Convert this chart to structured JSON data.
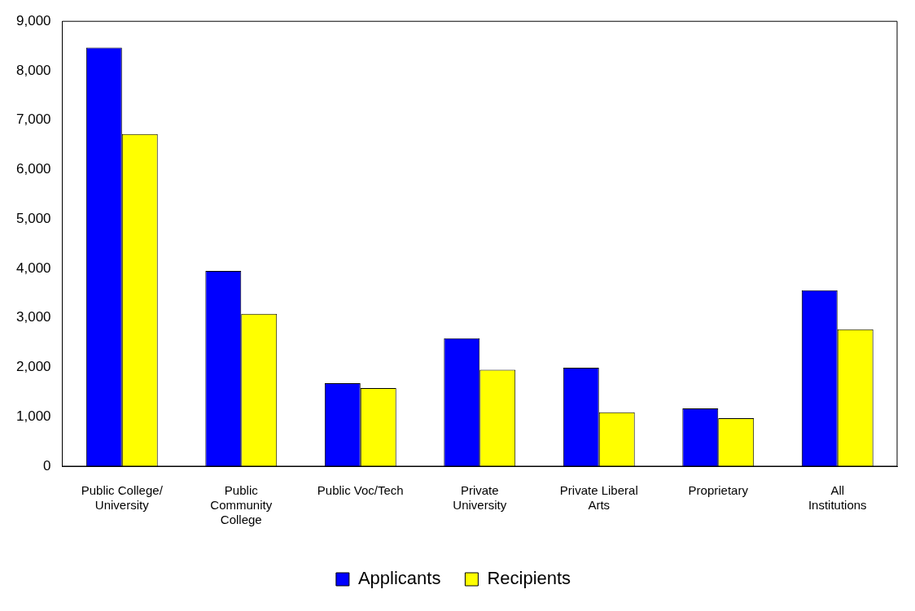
{
  "chart_data": {
    "type": "bar",
    "categories": [
      "Public College/ University",
      "Public Community College",
      "Public Voc/Tech",
      "Private University",
      "Private Liberal Arts",
      "Proprietary",
      "All Institutions"
    ],
    "series": [
      {
        "name": "Applicants",
        "color": "#0000ff",
        "values": [
          8470,
          3950,
          1680,
          2590,
          1990,
          1170,
          3560
        ]
      },
      {
        "name": "Recipients",
        "color": "#ffff00",
        "values": [
          6720,
          3080,
          1580,
          1950,
          1090,
          970,
          2770
        ]
      }
    ],
    "ylim": [
      0,
      9000
    ],
    "yticks": [
      {
        "value": 0,
        "label": "0"
      },
      {
        "value": 1000,
        "label": "1,000"
      },
      {
        "value": 2000,
        "label": "2,000"
      },
      {
        "value": 3000,
        "label": "3,000"
      },
      {
        "value": 4000,
        "label": "4,000"
      },
      {
        "value": 5000,
        "label": "5,000"
      },
      {
        "value": 6000,
        "label": "6,000"
      },
      {
        "value": 7000,
        "label": "7,000"
      },
      {
        "value": 8000,
        "label": "8,000"
      },
      {
        "value": 9000,
        "label": "9,000"
      }
    ],
    "grid": false,
    "legend": "bottom"
  }
}
